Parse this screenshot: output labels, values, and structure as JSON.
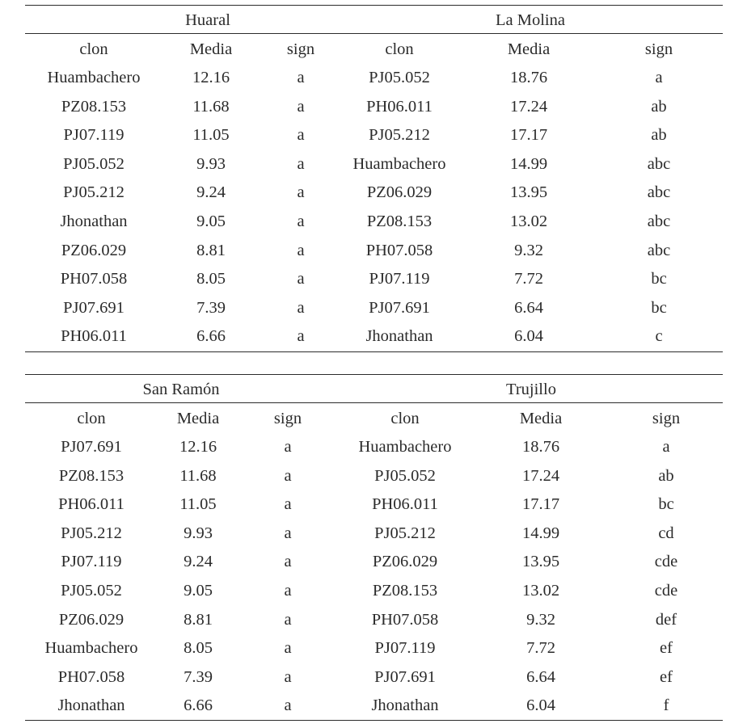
{
  "headers": {
    "clon": "clon",
    "media": "Media",
    "sign": "sign"
  },
  "tables": [
    {
      "left_title": "Huaral",
      "right_title": "La Molina",
      "rows": [
        {
          "l_clon": "Huambachero",
          "l_media": "12.16",
          "l_sign": "a",
          "r_clon": "PJ05.052",
          "r_media": "18.76",
          "r_sign": "a"
        },
        {
          "l_clon": "PZ08.153",
          "l_media": "11.68",
          "l_sign": "a",
          "r_clon": "PH06.011",
          "r_media": "17.24",
          "r_sign": "ab"
        },
        {
          "l_clon": "PJ07.119",
          "l_media": "11.05",
          "l_sign": "a",
          "r_clon": "PJ05.212",
          "r_media": "17.17",
          "r_sign": "ab"
        },
        {
          "l_clon": "PJ05.052",
          "l_media": "9.93",
          "l_sign": "a",
          "r_clon": "Huambachero",
          "r_media": "14.99",
          "r_sign": "abc"
        },
        {
          "l_clon": "PJ05.212",
          "l_media": "9.24",
          "l_sign": "a",
          "r_clon": "PZ06.029",
          "r_media": "13.95",
          "r_sign": "abc"
        },
        {
          "l_clon": "Jhonathan",
          "l_media": "9.05",
          "l_sign": "a",
          "r_clon": "PZ08.153",
          "r_media": "13.02",
          "r_sign": "abc"
        },
        {
          "l_clon": "PZ06.029",
          "l_media": "8.81",
          "l_sign": "a",
          "r_clon": "PH07.058",
          "r_media": "9.32",
          "r_sign": "abc"
        },
        {
          "l_clon": "PH07.058",
          "l_media": "8.05",
          "l_sign": "a",
          "r_clon": "PJ07.119",
          "r_media": "7.72",
          "r_sign": "bc"
        },
        {
          "l_clon": "PJ07.691",
          "l_media": "7.39",
          "l_sign": "a",
          "r_clon": "PJ07.691",
          "r_media": "6.64",
          "r_sign": "bc"
        },
        {
          "l_clon": "PH06.011",
          "l_media": "6.66",
          "l_sign": "a",
          "r_clon": "Jhonathan",
          "r_media": "6.04",
          "r_sign": "c"
        }
      ]
    },
    {
      "left_title": "San Ramón",
      "right_title": "Trujillo",
      "rows": [
        {
          "l_clon": "PJ07.691",
          "l_media": "12.16",
          "l_sign": "a",
          "r_clon": "Huambachero",
          "r_media": "18.76",
          "r_sign": "a"
        },
        {
          "l_clon": "PZ08.153",
          "l_media": "11.68",
          "l_sign": "a",
          "r_clon": "PJ05.052",
          "r_media": "17.24",
          "r_sign": "ab"
        },
        {
          "l_clon": "PH06.011",
          "l_media": "11.05",
          "l_sign": "a",
          "r_clon": "PH06.011",
          "r_media": "17.17",
          "r_sign": "bc"
        },
        {
          "l_clon": "PJ05.212",
          "l_media": "9.93",
          "l_sign": "a",
          "r_clon": "PJ05.212",
          "r_media": "14.99",
          "r_sign": "cd"
        },
        {
          "l_clon": "PJ07.119",
          "l_media": "9.24",
          "l_sign": "a",
          "r_clon": "PZ06.029",
          "r_media": "13.95",
          "r_sign": "cde"
        },
        {
          "l_clon": "PJ05.052",
          "l_media": "9.05",
          "l_sign": "a",
          "r_clon": "PZ08.153",
          "r_media": "13.02",
          "r_sign": "cde"
        },
        {
          "l_clon": "PZ06.029",
          "l_media": "8.81",
          "l_sign": "a",
          "r_clon": "PH07.058",
          "r_media": "9.32",
          "r_sign": "def"
        },
        {
          "l_clon": "Huambachero",
          "l_media": "8.05",
          "l_sign": "a",
          "r_clon": "PJ07.119",
          "r_media": "7.72",
          "r_sign": "ef"
        },
        {
          "l_clon": "PH07.058",
          "l_media": "7.39",
          "l_sign": "a",
          "r_clon": "PJ07.691",
          "r_media": "6.64",
          "r_sign": "ef"
        },
        {
          "l_clon": "Jhonathan",
          "l_media": "6.66",
          "l_sign": "a",
          "r_clon": "Jhonathan",
          "r_media": "6.04",
          "r_sign": "f"
        }
      ]
    }
  ]
}
